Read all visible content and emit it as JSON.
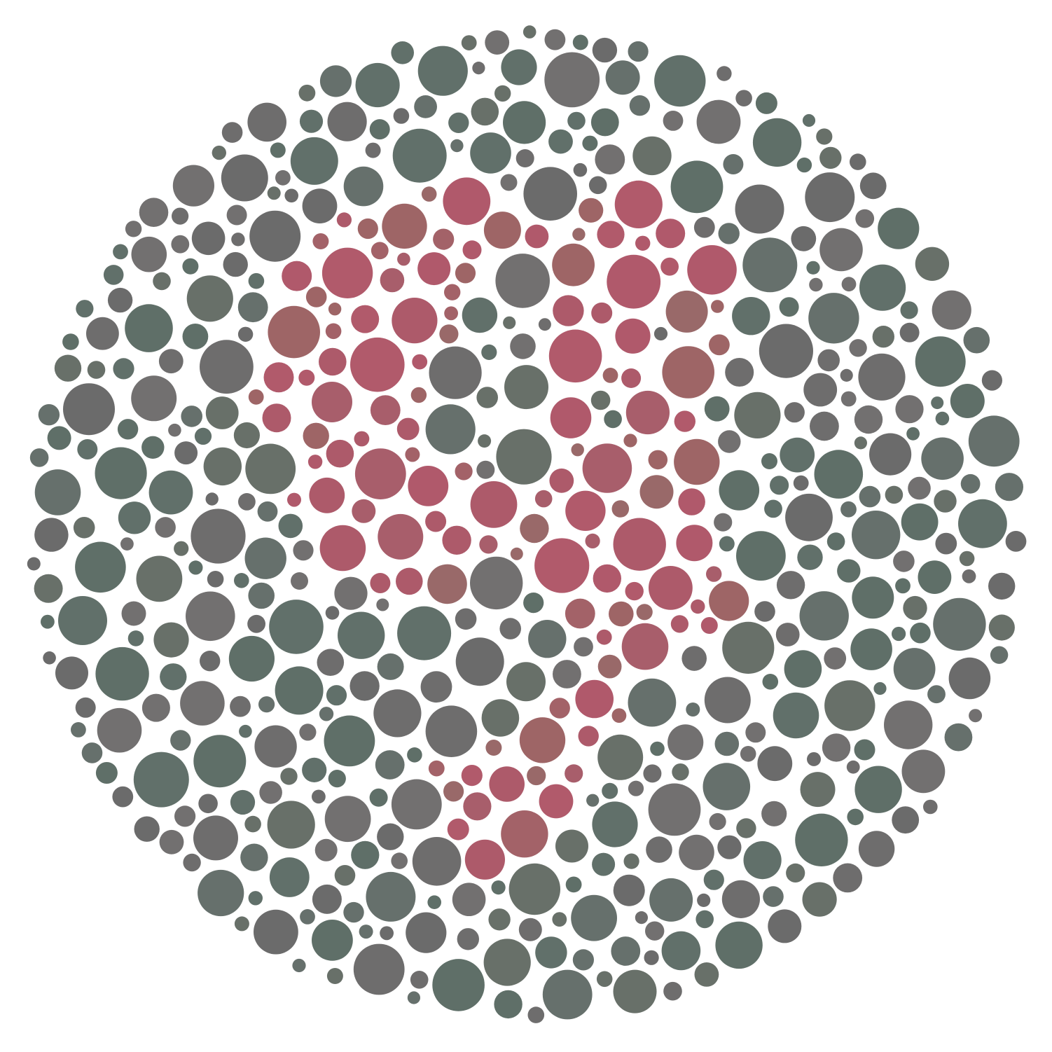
{
  "plate": {
    "kind": "color-vision test plate",
    "figure_digits": "",
    "palette": {
      "background": "#ffffff",
      "field": [
        "#6e6d6d",
        "#6b6b6b",
        "#727070",
        "#687069",
        "#61706a",
        "#5f6f68",
        "#66706c"
      ],
      "figure": [
        "#ad5a6a",
        "#b0596b",
        "#a85e6b",
        "#9e6566",
        "#996969",
        "#a36268",
        "#b15a6b"
      ]
    }
  }
}
